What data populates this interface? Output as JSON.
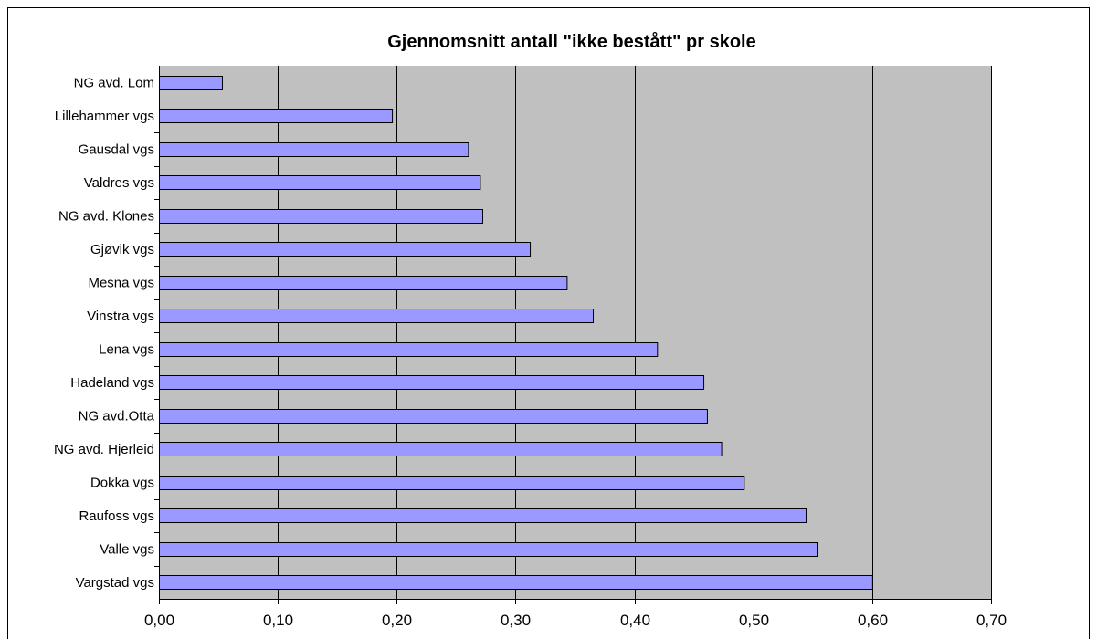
{
  "chart_data": {
    "type": "bar",
    "orientation": "horizontal",
    "title": "Gjennomsnitt antall \"ikke bestått\" pr skole",
    "xlabel": "",
    "ylabel": "",
    "categories": [
      "NG avd. Lom",
      "Lillehammer vgs",
      "Gausdal vgs",
      "Valdres vgs",
      "NG avd. Klones",
      "Gjøvik vgs",
      "Mesna vgs",
      "Vinstra vgs",
      "Lena vgs",
      "Hadeland vgs",
      "NG avd.Otta",
      "NG avd. Hjerleid",
      "Dokka vgs",
      "Raufoss vgs",
      "Valle vgs",
      "Vargstad vgs"
    ],
    "values": [
      0.053,
      0.196,
      0.26,
      0.27,
      0.272,
      0.312,
      0.343,
      0.365,
      0.419,
      0.458,
      0.461,
      0.473,
      0.492,
      0.544,
      0.554,
      0.6
    ],
    "xlim": [
      0,
      0.7
    ],
    "x_ticks": [
      "0,00",
      "0,10",
      "0,20",
      "0,30",
      "0,40",
      "0,50",
      "0,60",
      "0,70"
    ],
    "grid": "vertical",
    "legend": "none",
    "colors": {
      "bar_fill": "#9999ff",
      "bar_stroke": "#000000",
      "plot_background": "#c0c0c0",
      "grid": "#000000"
    }
  }
}
